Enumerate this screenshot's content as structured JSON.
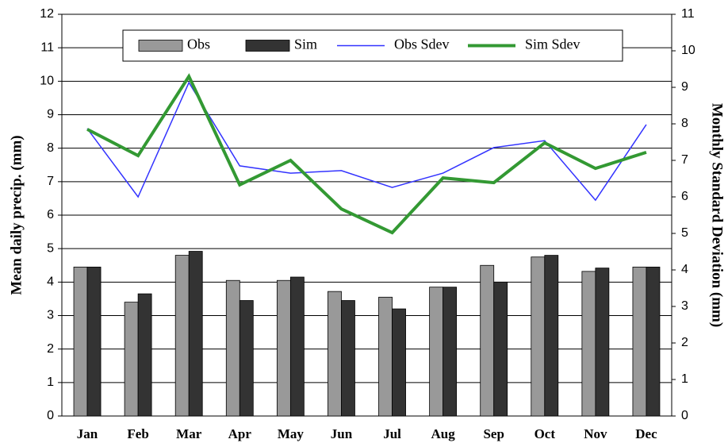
{
  "chart_data": {
    "type": "bar",
    "categories": [
      "Jan",
      "Feb",
      "Mar",
      "Apr",
      "May",
      "Jun",
      "Jul",
      "Aug",
      "Sep",
      "Oct",
      "Nov",
      "Dec"
    ],
    "series": [
      {
        "name": "Obs",
        "type": "bar",
        "color": "#999999",
        "values": [
          4.45,
          3.4,
          4.8,
          4.05,
          4.05,
          3.72,
          3.55,
          3.85,
          4.5,
          4.75,
          4.32,
          4.45
        ]
      },
      {
        "name": "Sim",
        "type": "bar",
        "color": "#333333",
        "values": [
          4.45,
          3.65,
          4.92,
          3.45,
          4.15,
          3.45,
          3.2,
          3.85,
          4.0,
          4.8,
          4.42,
          4.45
        ]
      },
      {
        "name": "Obs Sdev",
        "type": "line",
        "axis": "y2",
        "color": "#3333ff",
        "width": 1.5,
        "values": [
          7.87,
          6.0,
          9.13,
          6.85,
          6.65,
          6.72,
          6.26,
          6.65,
          7.35,
          7.54,
          5.91,
          7.98
        ]
      },
      {
        "name": "Sim Sdev",
        "type": "line",
        "axis": "y2",
        "color": "#339933",
        "width": 4,
        "values": [
          7.85,
          7.13,
          9.3,
          6.33,
          7.0,
          5.67,
          5.02,
          6.52,
          6.39,
          7.48,
          6.78,
          7.22
        ]
      }
    ],
    "y_label": "Mean daily precip. (mm)",
    "y2_label": "Monthly Standard Deviation (mm)",
    "ylim": [
      0,
      12
    ],
    "yticks": [
      0,
      1,
      2,
      3,
      4,
      5,
      6,
      7,
      8,
      9,
      10,
      11,
      12
    ],
    "y2lim": [
      0,
      11
    ],
    "y2ticks": [
      0,
      1,
      2,
      3,
      4,
      5,
      6,
      7,
      8,
      9,
      10,
      11
    ],
    "grid": true,
    "legend": "top"
  }
}
